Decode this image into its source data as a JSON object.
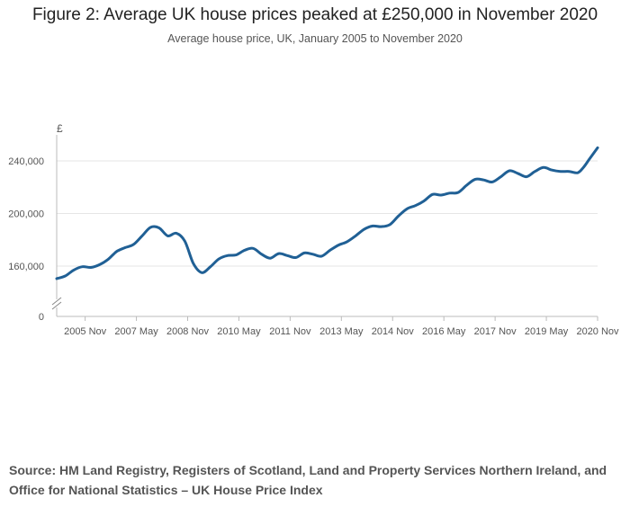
{
  "title": "Figure 2: Average UK house prices peaked at £250,000 in November 2020",
  "subtitle": "Average house price, UK, January 2005 to November 2020",
  "source": "Source: HM Land Registry, Registers of Scotland, Land and Property Services Northern Ireland, and Office for National Statistics – UK House Price Index",
  "colors": {
    "line": "#206095",
    "grid": "#e6e6e6",
    "axis": "#bbbbbb",
    "text": "#555555"
  },
  "chart_data": {
    "type": "line",
    "title": "Figure 2: Average UK house prices peaked at £250,000 in November 2020",
    "subtitle": "Average house price, UK, January 2005 to November 2020",
    "ylabel": "£",
    "xlabel": "",
    "y_axis_break": true,
    "ylim": [
      0,
      260000
    ],
    "yticks": [
      0,
      160000,
      200000,
      240000
    ],
    "ytick_labels": [
      "0",
      "160,000",
      "200,000",
      "240,000"
    ],
    "xticks": [
      "2005-11",
      "2007-05",
      "2008-11",
      "2010-05",
      "2011-11",
      "2013-05",
      "2014-11",
      "2016-05",
      "2017-11",
      "2019-05",
      "2020-11"
    ],
    "xtick_labels": [
      "2005 Nov",
      "2007 May",
      "2008 Nov",
      "2010 May",
      "2011 Nov",
      "2013 May",
      "2014 Nov",
      "2016 May",
      "2017 Nov",
      "2019 May",
      "2020 Nov"
    ],
    "grid": true,
    "legend": "none",
    "series": [
      {
        "x": [
          "2005-01",
          "2005-04",
          "2005-07",
          "2005-10",
          "2006-01",
          "2006-04",
          "2006-07",
          "2006-10",
          "2007-01",
          "2007-04",
          "2007-07",
          "2007-10",
          "2008-01",
          "2008-04",
          "2008-07",
          "2008-10",
          "2009-01",
          "2009-04",
          "2009-07",
          "2009-10",
          "2010-01",
          "2010-04",
          "2010-07",
          "2010-10",
          "2011-01",
          "2011-04",
          "2011-07",
          "2011-10",
          "2012-01",
          "2012-04",
          "2012-07",
          "2012-10",
          "2013-01",
          "2013-04",
          "2013-07",
          "2013-10",
          "2014-01",
          "2014-04",
          "2014-07",
          "2014-10",
          "2015-01",
          "2015-04",
          "2015-07",
          "2015-10",
          "2016-01",
          "2016-04",
          "2016-07",
          "2016-10",
          "2017-01",
          "2017-04",
          "2017-07",
          "2017-10",
          "2018-01",
          "2018-04",
          "2018-07",
          "2018-10",
          "2019-01",
          "2019-04",
          "2019-07",
          "2019-10",
          "2020-01",
          "2020-04",
          "2020-06",
          "2020-08",
          "2020-11"
        ],
        "values": [
          150500,
          152500,
          157000,
          159500,
          159000,
          161000,
          165000,
          171000,
          174000,
          176500,
          183000,
          189500,
          189000,
          183000,
          185000,
          179000,
          162000,
          155000,
          159500,
          165500,
          168000,
          168500,
          172000,
          173500,
          169000,
          166000,
          169500,
          168000,
          166500,
          170000,
          169000,
          167500,
          172000,
          176000,
          178500,
          183000,
          188000,
          190500,
          190000,
          191500,
          198000,
          203500,
          206000,
          209500,
          214500,
          214000,
          215500,
          216000,
          221500,
          226000,
          225500,
          224000,
          228000,
          232500,
          230500,
          228000,
          232000,
          235000,
          233000,
          232000,
          232000,
          231000,
          235000,
          241000,
          250000
        ]
      }
    ]
  }
}
